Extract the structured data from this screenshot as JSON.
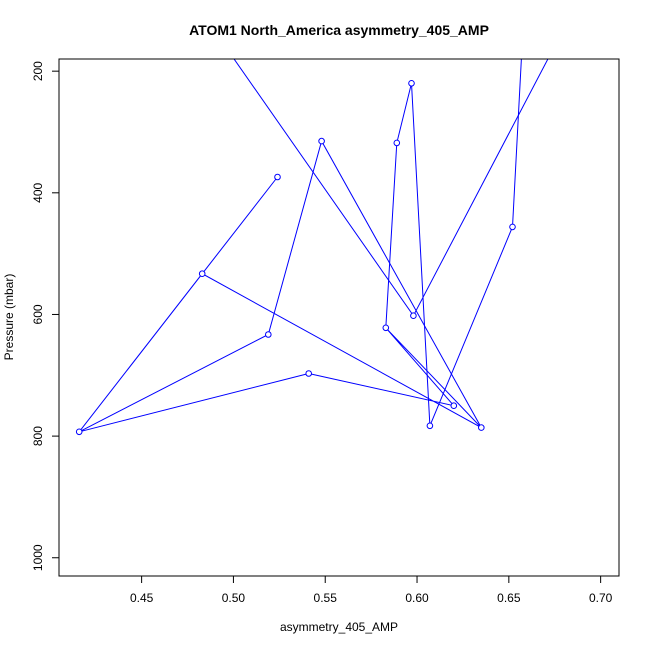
{
  "chart_data": {
    "type": "line",
    "title": "ATOM1 North_America asymmetry_405_AMP",
    "xlabel": "asymmetry_405_AMP",
    "ylabel": "Pressure (mbar)",
    "xlim": [
      0.405,
      0.71
    ],
    "ylim": [
      1030,
      180
    ],
    "y_reversed": true,
    "x_ticks": [
      0.45,
      0.5,
      0.55,
      0.6,
      0.65,
      0.7
    ],
    "x_tick_labels": [
      "0.45",
      "0.50",
      "0.55",
      "0.60",
      "0.65",
      "0.70"
    ],
    "y_ticks": [
      200,
      400,
      600,
      800,
      1000
    ],
    "y_tick_labels": [
      "200",
      "400",
      "600",
      "800",
      "1000"
    ],
    "grid": false,
    "marker": "open-circle",
    "color": "#0000ff",
    "series": [
      {
        "x": [
          0.541,
          0.62,
          0.583,
          0.635,
          0.483,
          0.416,
          0.524,
          0.483,
          0.635,
          0.548,
          0.519,
          0.416,
          0.541
        ],
        "y": [
          697,
          750,
          622,
          786,
          533,
          793,
          374,
          533,
          786,
          315,
          633,
          793,
          697
        ],
        "markers": [
          true,
          true,
          true,
          true,
          true,
          true,
          true,
          false,
          false,
          true,
          true,
          false,
          false
        ]
      },
      {
        "x": [
          0.583,
          0.589,
          0.597,
          0.607,
          0.652,
          0.657
        ],
        "y": [
          622,
          318,
          220,
          783,
          456,
          170
        ],
        "markers": [
          false,
          true,
          true,
          true,
          true,
          false
        ]
      },
      {
        "x": [
          0.498,
          0.598,
          0.673
        ],
        "y": [
          170,
          602,
          170
        ],
        "markers": [
          false,
          true,
          false
        ]
      }
    ]
  }
}
